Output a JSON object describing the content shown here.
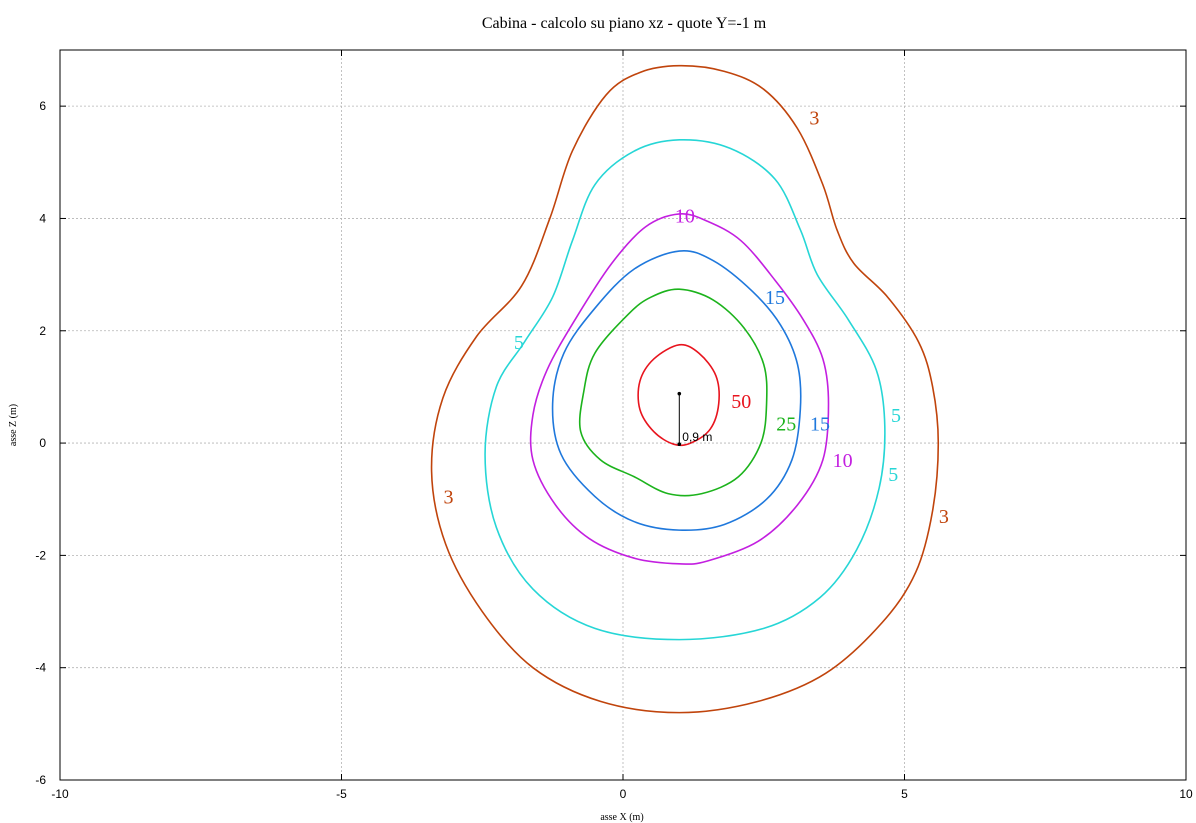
{
  "chart_data": {
    "type": "contour",
    "title": "Cabina  -  calcolo su piano xz  -  quote Y=-1 m",
    "xlabel": "asse X (m)",
    "ylabel": "asse Z (m)",
    "xlim": [
      -10,
      10
    ],
    "ylim": [
      -6,
      7
    ],
    "xticks": [
      -10,
      -5,
      0,
      5,
      10
    ],
    "yticks": [
      -6,
      -4,
      -2,
      0,
      2,
      4,
      6
    ],
    "grid": true,
    "source_marker": {
      "top": [
        1,
        0.88
      ],
      "bottom": [
        1,
        -0.02
      ],
      "label": "0,9 m"
    },
    "contours": [
      {
        "level": "3",
        "color": "#c0440c",
        "points": [
          [
            1,
            6.72
          ],
          [
            1.8,
            6.62
          ],
          [
            2.5,
            6.3
          ],
          [
            3.1,
            5.6
          ],
          [
            3.55,
            4.6
          ],
          [
            3.8,
            3.8
          ],
          [
            4.1,
            3.2
          ],
          [
            4.7,
            2.6
          ],
          [
            5.25,
            1.8
          ],
          [
            5.5,
            1.0
          ],
          [
            5.6,
            0
          ],
          [
            5.5,
            -1.2
          ],
          [
            5.2,
            -2.3
          ],
          [
            4.6,
            -3.2
          ],
          [
            3.6,
            -4.1
          ],
          [
            2.4,
            -4.6
          ],
          [
            1,
            -4.8
          ],
          [
            -0.4,
            -4.6
          ],
          [
            -1.6,
            -4.0
          ],
          [
            -2.5,
            -3.0
          ],
          [
            -3.15,
            -1.8
          ],
          [
            -3.4,
            -0.5
          ],
          [
            -3.2,
            0.8
          ],
          [
            -2.6,
            1.9
          ],
          [
            -1.8,
            2.8
          ],
          [
            -1.3,
            4.0
          ],
          [
            -0.9,
            5.2
          ],
          [
            -0.3,
            6.2
          ],
          [
            0.3,
            6.6
          ],
          [
            1,
            6.72
          ]
        ],
        "labels": [
          {
            "x": 3.4,
            "y": 5.8,
            "text": "3"
          },
          {
            "x": -3.1,
            "y": -0.95,
            "text": "3"
          },
          {
            "x": 5.7,
            "y": -1.3,
            "text": "3"
          }
        ]
      },
      {
        "level": "5",
        "color": "#26d6d6",
        "points": [
          [
            1,
            5.4
          ],
          [
            1.9,
            5.25
          ],
          [
            2.7,
            4.7
          ],
          [
            3.15,
            3.8
          ],
          [
            3.45,
            3.0
          ],
          [
            4.0,
            2.2
          ],
          [
            4.5,
            1.3
          ],
          [
            4.65,
            0.3
          ],
          [
            4.55,
            -0.8
          ],
          [
            4.15,
            -1.9
          ],
          [
            3.5,
            -2.75
          ],
          [
            2.5,
            -3.3
          ],
          [
            1,
            -3.5
          ],
          [
            -0.5,
            -3.3
          ],
          [
            -1.6,
            -2.6
          ],
          [
            -2.25,
            -1.5
          ],
          [
            -2.45,
            -0.2
          ],
          [
            -2.25,
            1.0
          ],
          [
            -1.75,
            1.8
          ],
          [
            -1.25,
            2.6
          ],
          [
            -0.9,
            3.6
          ],
          [
            -0.5,
            4.6
          ],
          [
            0.2,
            5.2
          ],
          [
            1,
            5.4
          ]
        ],
        "labels": [
          {
            "x": -1.85,
            "y": 1.8,
            "text": "5"
          },
          {
            "x": 4.85,
            "y": 0.5,
            "text": "5"
          },
          {
            "x": 4.8,
            "y": -0.55,
            "text": "5"
          }
        ]
      },
      {
        "level": "10",
        "color": "#c31fe0",
        "points": [
          [
            1,
            4.08
          ],
          [
            1.5,
            3.95
          ],
          [
            2.1,
            3.6
          ],
          [
            2.7,
            2.9
          ],
          [
            3.2,
            2.2
          ],
          [
            3.55,
            1.5
          ],
          [
            3.65,
            0.7
          ],
          [
            3.55,
            -0.3
          ],
          [
            3.1,
            -1.1
          ],
          [
            2.4,
            -1.75
          ],
          [
            1.5,
            -2.1
          ],
          [
            1,
            -2.15
          ],
          [
            0.2,
            -2.05
          ],
          [
            -0.6,
            -1.7
          ],
          [
            -1.2,
            -1.1
          ],
          [
            -1.6,
            -0.3
          ],
          [
            -1.6,
            0.5
          ],
          [
            -1.35,
            1.3
          ],
          [
            -0.85,
            2.2
          ],
          [
            -0.2,
            3.2
          ],
          [
            0.4,
            3.85
          ],
          [
            1,
            4.08
          ]
        ],
        "labels": [
          {
            "x": 1.1,
            "y": 4.05,
            "text": "10"
          },
          {
            "x": 3.9,
            "y": -0.3,
            "text": "10"
          }
        ]
      },
      {
        "level": "15",
        "color": "#1f78dc",
        "points": [
          [
            1,
            3.42
          ],
          [
            1.6,
            3.25
          ],
          [
            2.3,
            2.7
          ],
          [
            2.8,
            2.1
          ],
          [
            3.1,
            1.4
          ],
          [
            3.15,
            0.6
          ],
          [
            3.0,
            -0.3
          ],
          [
            2.55,
            -1.0
          ],
          [
            1.8,
            -1.45
          ],
          [
            1,
            -1.55
          ],
          [
            0.2,
            -1.4
          ],
          [
            -0.5,
            -0.95
          ],
          [
            -1.1,
            -0.2
          ],
          [
            -1.25,
            0.7
          ],
          [
            -1.05,
            1.6
          ],
          [
            -0.5,
            2.4
          ],
          [
            0.2,
            3.1
          ],
          [
            1,
            3.42
          ]
        ],
        "labels": [
          {
            "x": 2.7,
            "y": 2.6,
            "text": "15"
          },
          {
            "x": 3.5,
            "y": 0.35,
            "text": "15"
          }
        ]
      },
      {
        "level": "25",
        "color": "#1cb31c",
        "points": [
          [
            1,
            2.74
          ],
          [
            1.6,
            2.55
          ],
          [
            2.15,
            2.05
          ],
          [
            2.5,
            1.4
          ],
          [
            2.55,
            0.7
          ],
          [
            2.45,
            0.0
          ],
          [
            2.05,
            -0.6
          ],
          [
            1.4,
            -0.9
          ],
          [
            0.8,
            -0.9
          ],
          [
            0.2,
            -0.6
          ],
          [
            -0.4,
            -0.3
          ],
          [
            -0.75,
            0.2
          ],
          [
            -0.7,
            0.9
          ],
          [
            -0.5,
            1.6
          ],
          [
            0.1,
            2.3
          ],
          [
            0.5,
            2.6
          ],
          [
            1,
            2.74
          ]
        ],
        "labels": [
          {
            "x": 2.9,
            "y": 0.35,
            "text": "25"
          }
        ]
      },
      {
        "level": "50",
        "color": "#e8141e",
        "points": [
          [
            1,
            1.75
          ],
          [
            1.35,
            1.6
          ],
          [
            1.65,
            1.2
          ],
          [
            1.7,
            0.7
          ],
          [
            1.55,
            0.25
          ],
          [
            1.2,
            0.0
          ],
          [
            0.9,
            -0.02
          ],
          [
            0.55,
            0.2
          ],
          [
            0.3,
            0.6
          ],
          [
            0.3,
            1.1
          ],
          [
            0.55,
            1.5
          ],
          [
            1,
            1.75
          ]
        ],
        "labels": [
          {
            "x": 2.1,
            "y": 0.75,
            "text": "50"
          }
        ]
      }
    ]
  }
}
